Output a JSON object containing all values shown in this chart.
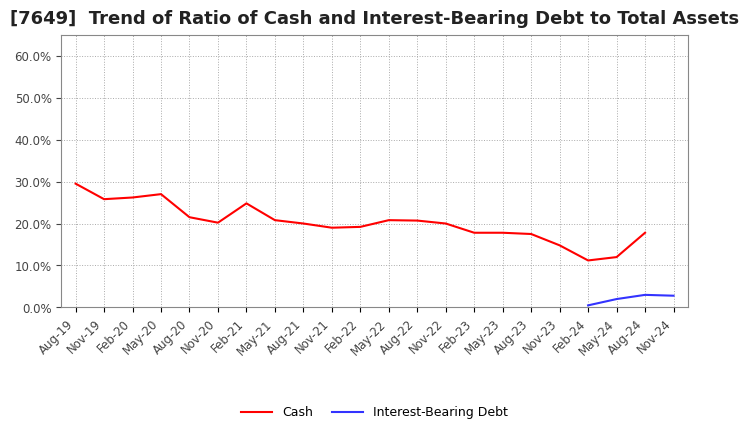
{
  "title": "[7649]  Trend of Ratio of Cash and Interest-Bearing Debt to Total Assets",
  "cash_dates": [
    "Aug-19",
    "Nov-19",
    "Feb-20",
    "May-20",
    "Aug-20",
    "Nov-20",
    "Feb-21",
    "May-21",
    "Aug-21",
    "Nov-21",
    "Feb-22",
    "May-22",
    "Aug-22",
    "Nov-22",
    "Feb-23",
    "May-23",
    "Aug-23",
    "Nov-23",
    "Feb-24",
    "May-24",
    "Aug-24",
    "Nov-24"
  ],
  "cash_values": [
    0.295,
    0.258,
    0.262,
    0.27,
    0.215,
    0.202,
    0.248,
    0.208,
    0.2,
    0.19,
    0.192,
    0.208,
    0.207,
    0.2,
    0.178,
    0.178,
    0.175,
    0.148,
    0.112,
    0.12,
    0.178,
    null
  ],
  "debt_dates": [
    "Feb-24",
    "May-24",
    "Aug-24",
    "Nov-24"
  ],
  "debt_values": [
    0.005,
    0.02,
    0.03,
    0.028
  ],
  "cash_color": "#ff0000",
  "debt_color": "#3333ff",
  "ylim": [
    0.0,
    0.65
  ],
  "yticks": [
    0.0,
    0.1,
    0.2,
    0.3,
    0.4,
    0.5,
    0.6
  ],
  "background_color": "#ffffff",
  "plot_bg_color": "#ffffff",
  "grid_color": "#aaaaaa",
  "title_fontsize": 13,
  "tick_fontsize": 8.5,
  "legend_fontsize": 9
}
